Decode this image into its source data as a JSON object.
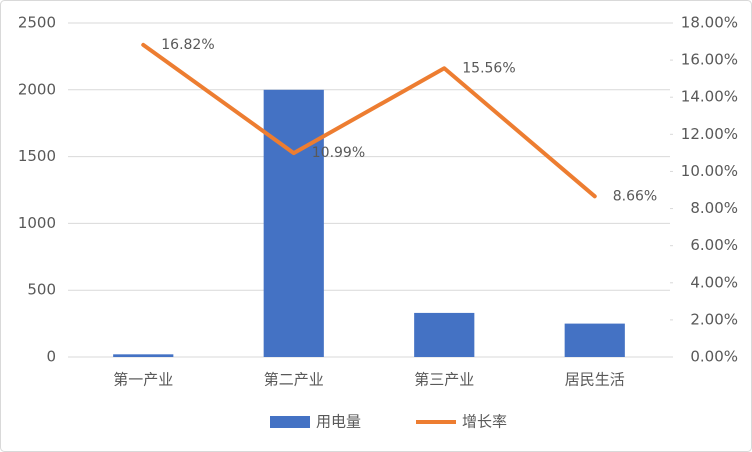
{
  "chart_data": {
    "type": "combo",
    "categories": [
      "第一产业",
      "第二产业",
      "第三产业",
      "居民生活"
    ],
    "series": [
      {
        "name": "用电量",
        "type": "bar",
        "color": "#4472c4",
        "values": [
          20,
          2000,
          330,
          250
        ]
      },
      {
        "name": "增长率",
        "type": "line",
        "axis": "y2",
        "color": "#ed7d31",
        "values": [
          16.82,
          10.99,
          15.56,
          8.66
        ],
        "value_labels": [
          "16.82%",
          "10.99%",
          "15.56%",
          "8.66%"
        ]
      }
    ],
    "ylim": [
      0,
      2500
    ],
    "yticks": [
      0,
      500,
      1000,
      1500,
      2000,
      2500
    ],
    "y2lim": [
      0,
      18
    ],
    "y2ticks": [
      {
        "value": 0,
        "label": "0.00%"
      },
      {
        "value": 2,
        "label": "2.00%"
      },
      {
        "value": 4,
        "label": "4.00%"
      },
      {
        "value": 6,
        "label": "6.00%"
      },
      {
        "value": 8,
        "label": "8.00%"
      },
      {
        "value": 10,
        "label": "10.00%"
      },
      {
        "value": 12,
        "label": "12.00%"
      },
      {
        "value": 14,
        "label": "14.00%"
      },
      {
        "value": 16,
        "label": "16.00%"
      },
      {
        "value": 18,
        "label": "18.00%"
      }
    ],
    "legend": "bottom"
  }
}
